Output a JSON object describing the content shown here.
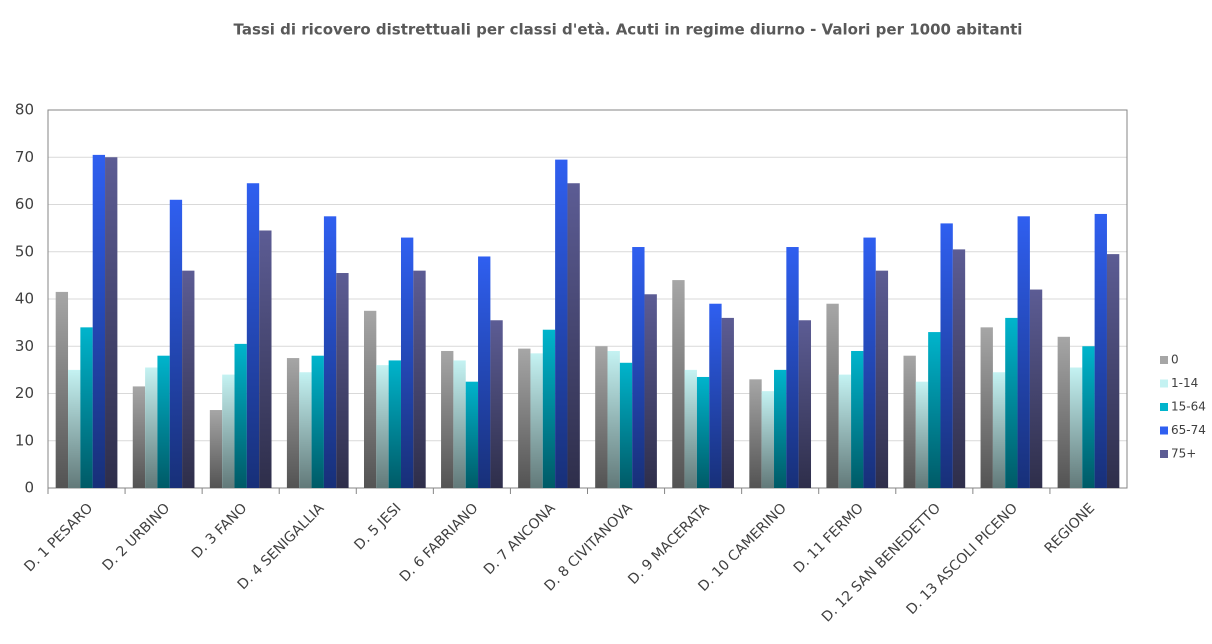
{
  "chart_data": {
    "type": "bar",
    "title": "Tassi di ricovero distrettuali per classi d'età. Acuti in regime diurno - Valori per 1000 abitanti",
    "categories": [
      "D. 1 PESARO",
      "D. 2 URBINO",
      "D. 3 FANO",
      "D. 4 SENIGALLIA",
      "D. 5 JESI",
      "D. 6 FABRIANO",
      "D. 7 ANCONA",
      "D. 8 CIVITANOVA",
      "D. 9 MACERATA",
      "D. 10 CAMERINO",
      "D. 11 FERMO",
      "D. 12 SAN BENEDETTO",
      "D. 13 ASCOLI PICENO",
      "REGIONE"
    ],
    "series": [
      {
        "name": "0",
        "color": "#a6a6a6",
        "values": [
          41.5,
          21.5,
          16.5,
          27.5,
          37.5,
          29,
          29.5,
          30,
          44,
          23,
          39,
          28,
          34,
          32
        ]
      },
      {
        "name": "1-14",
        "color": "#c4f2f2",
        "values": [
          25,
          25.5,
          24,
          24.5,
          26,
          27,
          28.5,
          29,
          25,
          20.5,
          24,
          22.5,
          24.5,
          25.5
        ]
      },
      {
        "name": "15-64",
        "color": "#00b4cc",
        "values": [
          34,
          28,
          30.5,
          28,
          27,
          22.5,
          33.5,
          26.5,
          23.5,
          25,
          29,
          33,
          36,
          30
        ]
      },
      {
        "name": "65-74",
        "color": "#2f5ff0",
        "values": [
          70.5,
          61,
          64.5,
          57.5,
          53,
          49,
          69.5,
          51,
          39,
          51,
          53,
          56,
          57.5,
          58
        ]
      },
      {
        "name": "75+",
        "color": "#5c5c94",
        "values": [
          70,
          46,
          54.5,
          45.5,
          46,
          35.5,
          64.5,
          41,
          36,
          35.5,
          46,
          50.5,
          42,
          49.5
        ]
      }
    ],
    "ylim": [
      0,
      80
    ],
    "yticks": [
      0,
      10,
      20,
      30,
      40,
      50,
      60,
      70,
      80
    ],
    "grid": true,
    "legend": "right"
  }
}
